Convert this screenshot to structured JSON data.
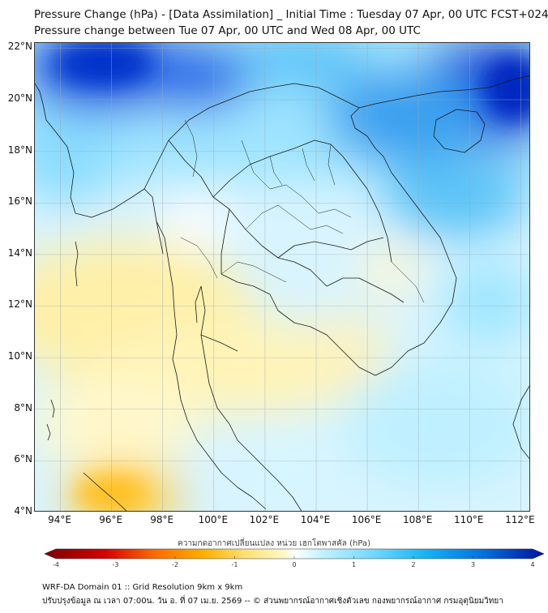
{
  "header": {
    "title_line1": "Pressure Change (hPa) - [Data Assimilation] _ Initial Time : Tuesday 07 Apr, 00 UTC FCST+024",
    "title_line2": "Pressure change between Tue 07 Apr, 00 UTC and Wed 08 Apr, 00 UTC"
  },
  "map": {
    "lat_labels": [
      "22°N",
      "20°N",
      "18°N",
      "16°N",
      "14°N",
      "12°N",
      "10°N",
      "8°N",
      "6°N",
      "4°N"
    ],
    "lon_labels": [
      "94°E",
      "96°E",
      "98°E",
      "100°E",
      "102°E",
      "104°E",
      "106°E",
      "108°E",
      "110°E",
      "112°E"
    ],
    "lat_values": [
      22,
      20,
      18,
      16,
      14,
      12,
      10,
      8,
      6,
      4
    ],
    "lon_values": [
      94,
      96,
      98,
      100,
      102,
      104,
      106,
      108,
      110,
      112
    ],
    "lat_range": [
      4,
      22.2
    ],
    "lon_range": [
      93,
      112.4
    ],
    "gridlines": true,
    "boundaries": "country-and-province-outlines"
  },
  "colorbar": {
    "title": "ความกดอากาศเปลี่ยนแปลง หน่วย เฮกโตพาสคัล (hPa)",
    "range": [
      -4,
      4
    ],
    "ticks": [
      "-4",
      "-3",
      "-2",
      "-1",
      "0",
      "1",
      "2",
      "3",
      "4"
    ],
    "tick_values": [
      -4,
      -3,
      -2,
      -1,
      0,
      1,
      2,
      3,
      4
    ],
    "negative_colors": [
      "#7a0000",
      "#d40000",
      "#ff6a00",
      "#ffb000",
      "#ffe070",
      "#fff8c8"
    ],
    "positive_colors": [
      "#ffffff",
      "#c8f2ff",
      "#70d8ff",
      "#18b4f5",
      "#0070e0",
      "#0010a0"
    ]
  },
  "footer": {
    "line1": "WRF-DA Domain 01 :: Grid Resolution 9km x 9km",
    "line2": "ปรับปรุงข้อมูล ณ เวลา 07:00น. วัน อ. ที่ 07 เม.ย. 2569 -- © ส่วนพยากรณ์อากาศเชิงตัวเลข กองพยากรณ์อากาศ กรมอุตุนิยมวิทยา"
  }
}
